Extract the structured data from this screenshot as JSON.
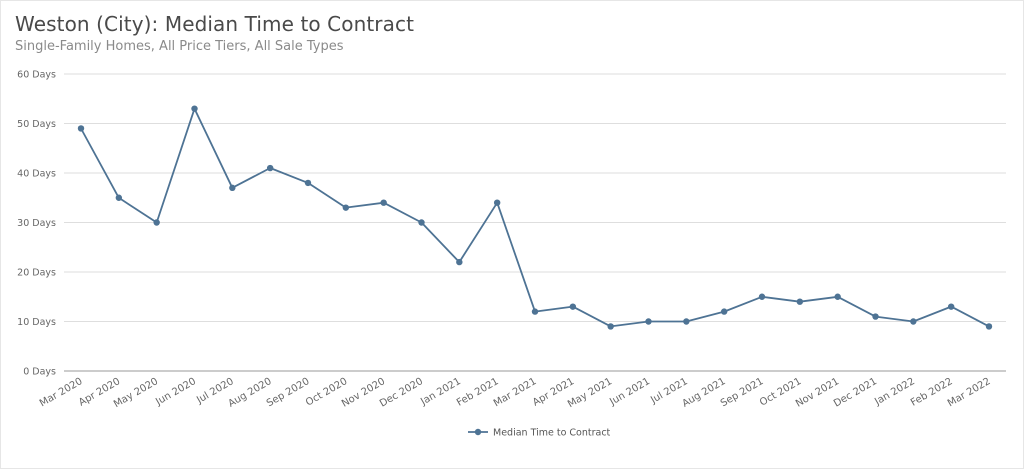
{
  "chart_data": {
    "type": "line",
    "title": "Weston (City): Median Time to Contract",
    "subtitle": "Single-Family Homes, All Price Tiers, All Sale Types",
    "xlabel": "",
    "ylabel": "",
    "ylim": [
      0,
      60
    ],
    "yticks": [
      0,
      10,
      20,
      30,
      40,
      50,
      60
    ],
    "ytick_labels": [
      "0 Days",
      "10 Days",
      "20 Days",
      "30 Days",
      "40 Days",
      "50 Days",
      "60 Days"
    ],
    "grid": true,
    "legend_position": "bottom-center",
    "categories": [
      "Mar 2020",
      "Apr 2020",
      "May 2020",
      "Jun 2020",
      "Jul 2020",
      "Aug 2020",
      "Sep 2020",
      "Oct 2020",
      "Nov 2020",
      "Dec 2020",
      "Jan 2021",
      "Feb 2021",
      "Mar 2021",
      "Apr 2021",
      "May 2021",
      "Jun 2021",
      "Jul 2021",
      "Aug 2021",
      "Sep 2021",
      "Oct 2021",
      "Nov 2021",
      "Dec 2021",
      "Jan 2022",
      "Feb 2022",
      "Mar 2022"
    ],
    "series": [
      {
        "name": "Median Time to Contract",
        "color": "#4e7394",
        "values": [
          49,
          35,
          30,
          53,
          37,
          41,
          38,
          33,
          34,
          30,
          22,
          34,
          12,
          13,
          9,
          10,
          10,
          12,
          15,
          14,
          15,
          11,
          10,
          13,
          9
        ]
      }
    ]
  }
}
